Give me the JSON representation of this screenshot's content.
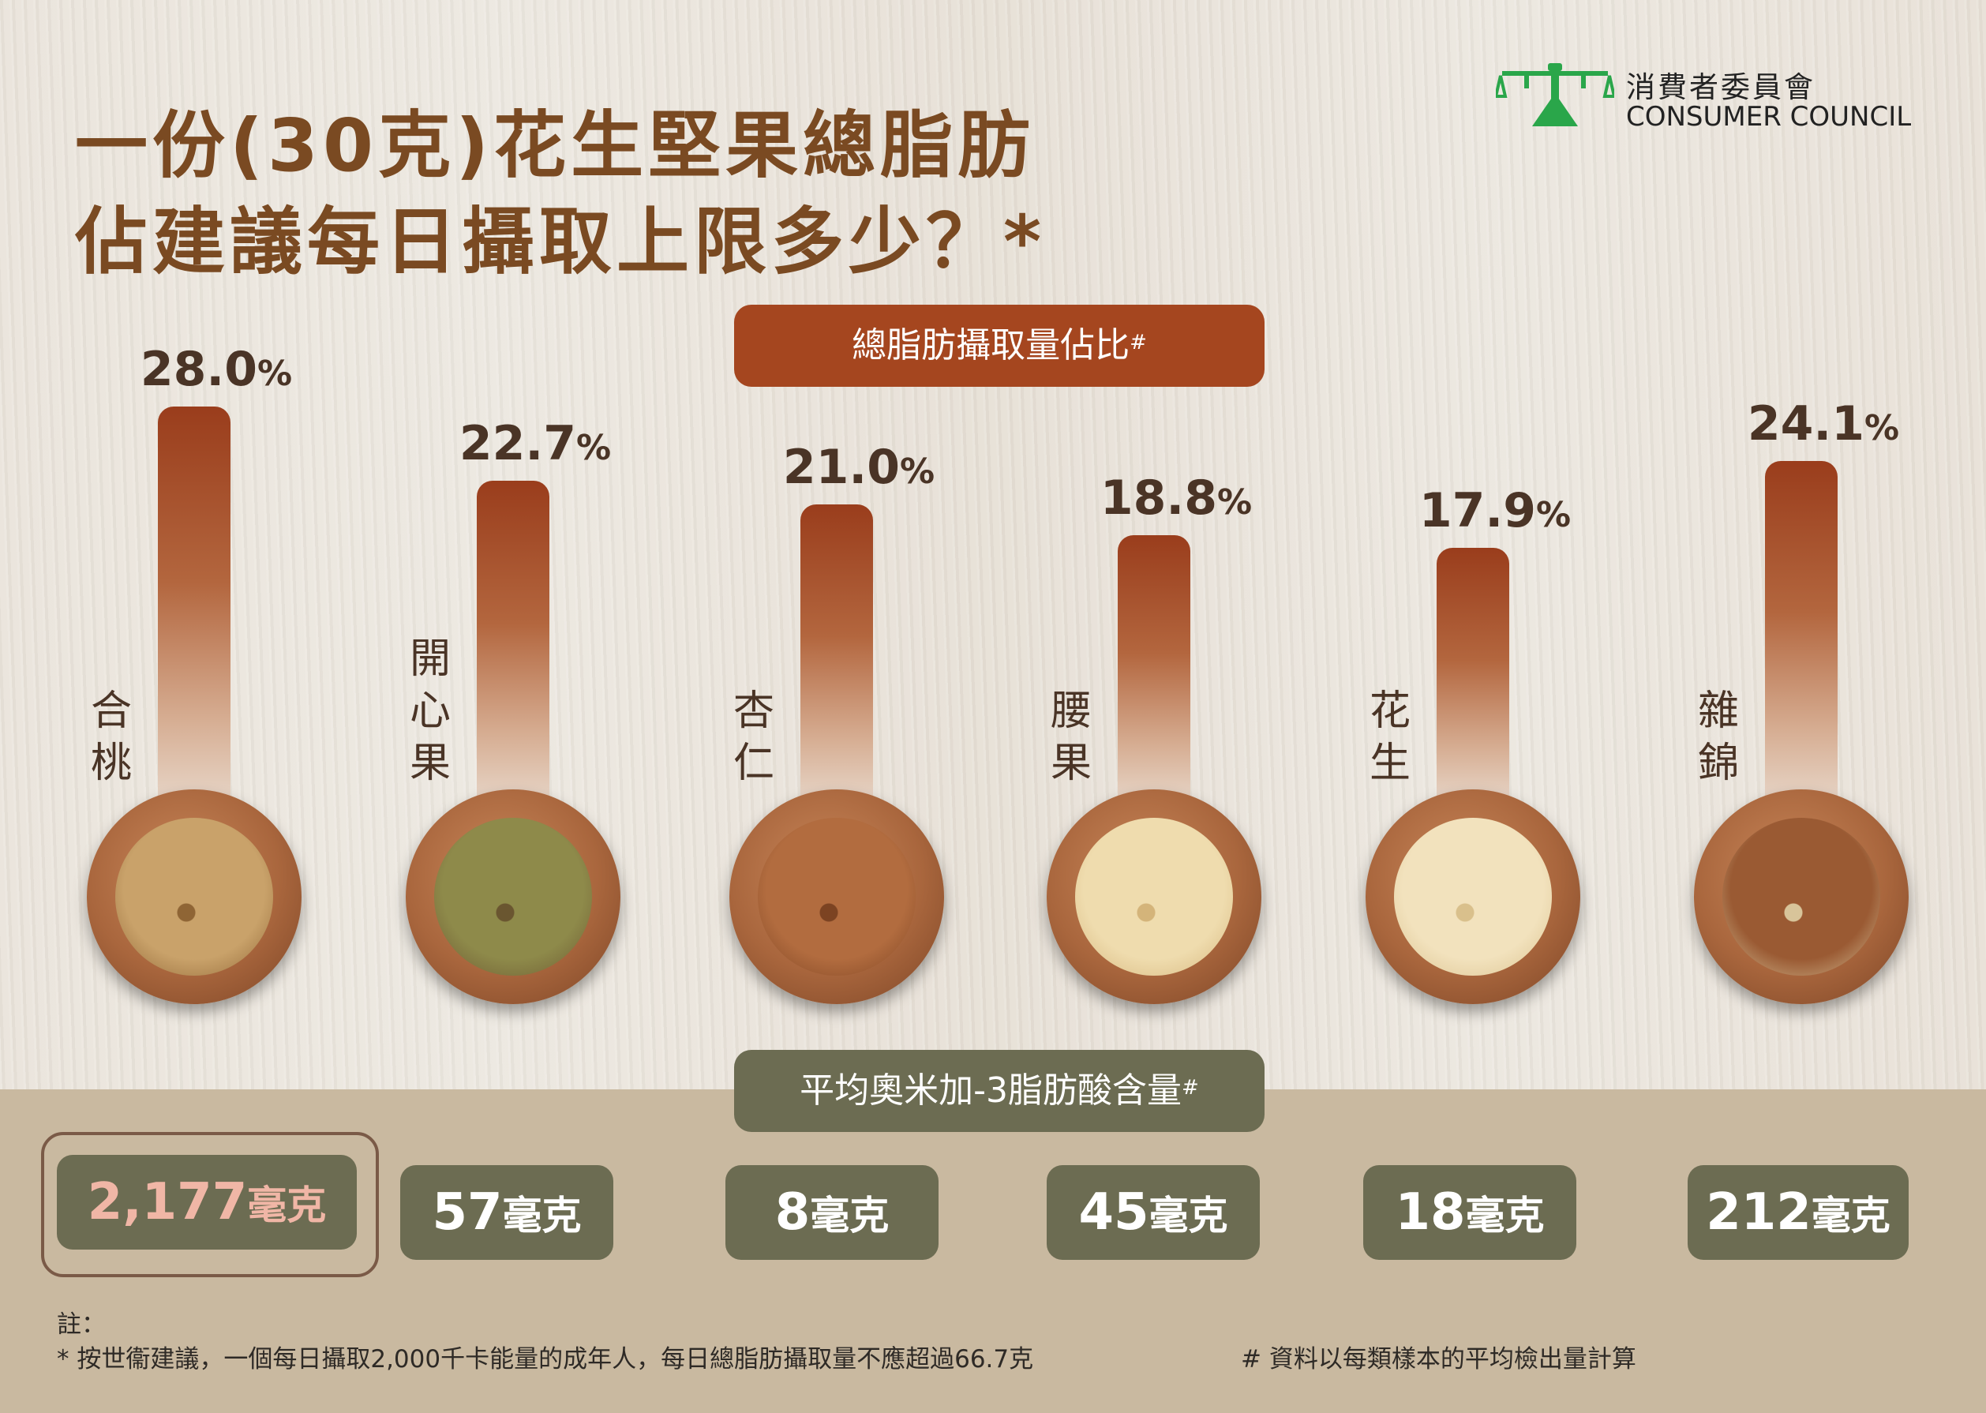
{
  "title": {
    "line1": "一份(30克)花生堅果總脂肪",
    "line2": "佔建議每日攝取上限多少？*"
  },
  "logo": {
    "zh": "消費者委員會",
    "en": "CONSUMER COUNCIL"
  },
  "fat_pill": {
    "label": "總脂肪攝取量佔比",
    "mark": "#"
  },
  "omega_pill": {
    "label": "平均奧米加-3脂肪酸含量",
    "mark": "#"
  },
  "chart_data": {
    "type": "bar",
    "categories": [
      "合桃",
      "開心果",
      "杏仁",
      "腰果",
      "花生",
      "雜錦"
    ],
    "series": [
      {
        "values": [
          28.0,
          22.7,
          21.0,
          18.8,
          17.9,
          24.1
        ]
      }
    ],
    "value_labels": [
      "28.0%",
      "22.7%",
      "21.0%",
      "18.8%",
      "17.9%",
      "24.1%"
    ],
    "omega3": {
      "values": [
        2177,
        57,
        8,
        45,
        18,
        212
      ],
      "labels": [
        "2,177",
        "57",
        "8",
        "45",
        "18",
        "212"
      ],
      "unit": "毫克",
      "highlighted_index": 0
    }
  },
  "notes": {
    "heading": "註：",
    "star": "*  按世衞建議，一個每日攝取2,000千卡能量的成年人，每日總脂肪攝取量不應超過66.7克",
    "hash": "#  資料以每類樣本的平均檢出量計算"
  },
  "colors": {
    "title": "#7a4a22",
    "fat_pill": "#a5461f",
    "omega_pill": "#6c6c52",
    "bottom_band": "#c9b9a0",
    "highlight_value": "#f0b6a6",
    "logo_green": "#2aa64a"
  },
  "icons": {
    "logo": "scales-of-justice-icon"
  }
}
